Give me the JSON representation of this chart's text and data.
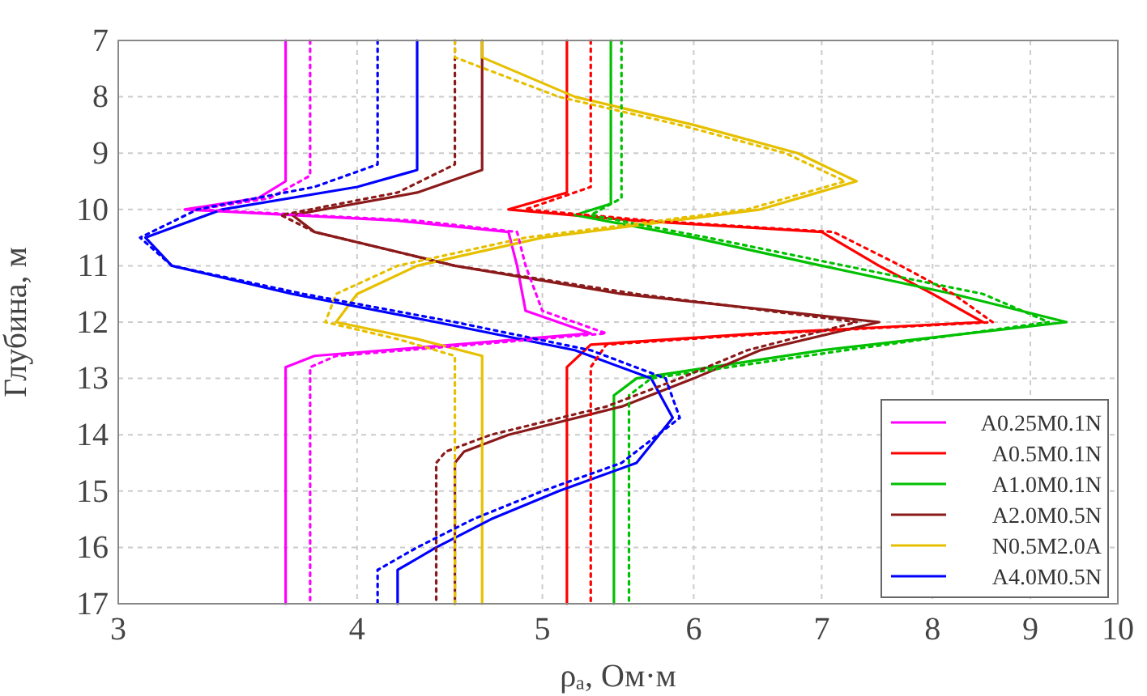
{
  "chart_data": {
    "type": "line",
    "xlabel": "ρₐ, Ом·м",
    "ylabel": "Глубина, м",
    "log": "x",
    "grid": true,
    "legend": "bottom right",
    "marker": "none",
    "line_style": "solid",
    "xlim": [
      3,
      10
    ],
    "xticks": [
      3,
      4,
      5,
      6,
      7,
      8,
      9,
      10
    ],
    "ylim": [
      17,
      7
    ],
    "yticks": [
      7,
      8,
      9,
      10,
      11,
      12,
      13,
      14,
      15,
      16,
      17
    ],
    "series": [
      {
        "name": "A0.25M0.1N",
        "color": "#ff00ff",
        "x": [
          3.67,
          3.67,
          3.55,
          3.25,
          4.2,
          4.8,
          4.85,
          4.9,
          5.3,
          4.5,
          3.8,
          3.67,
          3.67
        ],
        "values": [
          7,
          9.5,
          9.8,
          10,
          10.2,
          10.4,
          11,
          11.8,
          12.2,
          12.4,
          12.6,
          12.8,
          17
        ]
      },
      {
        "name": "A0.5M0.1N",
        "color": "#ff0000",
        "x": [
          5.15,
          5.15,
          4.8,
          5.6,
          7,
          7.5,
          8,
          8.5,
          6.5,
          5.3,
          5.15,
          5.15
        ],
        "values": [
          7,
          9.7,
          10,
          10.2,
          10.4,
          11,
          11.5,
          12,
          12.2,
          12.4,
          12.8,
          17
        ]
      },
      {
        "name": "A1.0M0.1N",
        "color": "#00c000",
        "x": [
          5.43,
          5.43,
          5.2,
          6,
          7,
          8.2,
          9.4,
          7,
          5.6,
          5.45,
          5.45
        ],
        "values": [
          7,
          9.9,
          10.1,
          10.5,
          11,
          11.5,
          12,
          12.5,
          13,
          13.3,
          17
        ]
      },
      {
        "name": "A2.0M0.5N",
        "color": "#8b1a1a",
        "x": [
          4.65,
          4.65,
          4.3,
          3.7,
          3.8,
          4.5,
          5.5,
          7.5,
          6.5,
          6,
          5.5,
          4.8,
          4.55,
          4.5,
          4.5
        ],
        "values": [
          7,
          9.3,
          9.7,
          10.1,
          10.4,
          11,
          11.5,
          12,
          12.5,
          13,
          13.5,
          14,
          14.3,
          14.5,
          17
        ]
      },
      {
        "name": "N0.5M2.0A",
        "color": "#e6c000",
        "x": [
          4.65,
          4.65,
          5.2,
          6,
          6.8,
          7.3,
          6.5,
          5,
          4.3,
          4,
          3.9,
          4.3,
          4.65,
          4.65
        ],
        "values": [
          7,
          7.3,
          8,
          8.5,
          9,
          9.5,
          10,
          10.5,
          11,
          11.5,
          12,
          12.3,
          12.6,
          17
        ]
      },
      {
        "name": "A4.0M0.5N",
        "color": "#0000ff",
        "x": [
          4.3,
          4.3,
          4,
          3.4,
          3.1,
          3.2,
          3.7,
          4.4,
          5.2,
          5.7,
          5.85,
          5.6,
          5.1,
          4.7,
          4.4,
          4.2,
          4.2
        ],
        "values": [
          7,
          9.3,
          9.6,
          10,
          10.5,
          11,
          11.5,
          12,
          12.5,
          13,
          13.7,
          14.5,
          15,
          15.5,
          16,
          16.4,
          17
        ]
      },
      {
        "color": "#ff00ff",
        "line_style": "dotted",
        "x": [
          3.78,
          3.78,
          3.6,
          3.3,
          4.3,
          4.85,
          4.9,
          5,
          5.4,
          4.6,
          3.9,
          3.78,
          3.78
        ],
        "values": [
          7,
          9.4,
          9.8,
          10,
          10.2,
          10.4,
          11,
          11.8,
          12.2,
          12.4,
          12.6,
          12.8,
          17
        ]
      },
      {
        "color": "#ff0000",
        "line_style": "dotted",
        "x": [
          5.3,
          5.3,
          4.9,
          5.7,
          7.1,
          7.7,
          8.2,
          8.6,
          6.6,
          5.4,
          5.3,
          5.3
        ],
        "values": [
          7,
          9.6,
          10,
          10.2,
          10.4,
          11,
          11.5,
          12,
          12.2,
          12.4,
          12.8,
          17
        ]
      },
      {
        "color": "#00c000",
        "line_style": "dotted",
        "x": [
          5.5,
          5.5,
          5.3,
          6.1,
          7.2,
          8.5,
          9.2,
          7.2,
          5.7,
          5.55,
          5.55
        ],
        "values": [
          7,
          9.8,
          10.1,
          10.5,
          11,
          11.5,
          12,
          12.5,
          13,
          13.3,
          17
        ]
      },
      {
        "color": "#8b1a1a",
        "line_style": "dotted",
        "x": [
          4.5,
          4.5,
          4.2,
          3.65,
          3.8,
          4.5,
          5.6,
          7.3,
          6.4,
          5.9,
          5.4,
          4.7,
          4.45,
          4.4,
          4.4
        ],
        "values": [
          7,
          9.2,
          9.7,
          10.1,
          10.4,
          11,
          11.5,
          12,
          12.5,
          13,
          13.5,
          14,
          14.3,
          14.5,
          17
        ]
      },
      {
        "color": "#e6c000",
        "line_style": "dotted",
        "x": [
          4.5,
          4.5,
          5.1,
          5.9,
          6.7,
          7.2,
          6.4,
          4.9,
          4.2,
          3.9,
          3.85,
          4.2,
          4.5,
          4.5
        ],
        "values": [
          7,
          7.3,
          8,
          8.5,
          9,
          9.5,
          10,
          10.5,
          11,
          11.5,
          12,
          12.3,
          12.6,
          17
        ]
      },
      {
        "color": "#0000ff",
        "line_style": "dotted",
        "x": [
          4.1,
          4.1,
          3.8,
          3.3,
          3.08,
          3.2,
          3.75,
          4.5,
          5.3,
          5.8,
          5.9,
          5.5,
          5,
          4.6,
          4.3,
          4.1,
          4.1
        ],
        "values": [
          7,
          9.2,
          9.6,
          10,
          10.5,
          11,
          11.5,
          12,
          12.5,
          13,
          13.7,
          14.5,
          15,
          15.5,
          16,
          16.4,
          17
        ]
      }
    ]
  }
}
